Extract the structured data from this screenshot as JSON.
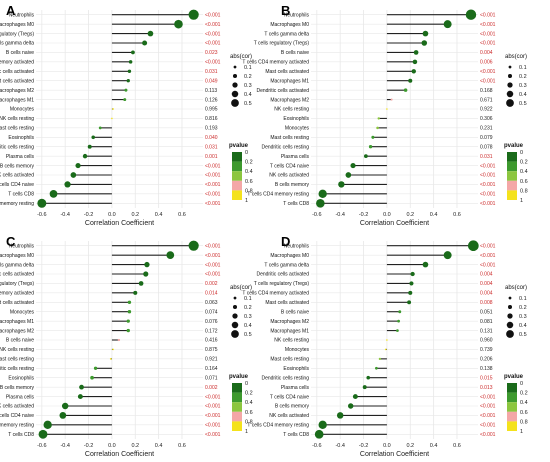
{
  "chart_data": [
    {
      "panel": "A",
      "type": "scatter",
      "xlabel": "Correlation Coefficient",
      "xticks": [
        -0.6,
        -0.4,
        -0.2,
        0.0,
        0.2,
        0.4,
        0.6
      ],
      "xlim": [
        -0.65,
        0.78
      ],
      "size_legend_title": "abs(cor)",
      "size_legend_values": [
        "0.1",
        "0.2",
        "0.3",
        "0.4",
        "0.5"
      ],
      "color_legend_title": "pvalue",
      "color_legend_values": [
        "0",
        "0.2",
        "0.4",
        "0.6",
        "0.8",
        "1"
      ],
      "cells": [
        "Neutrophils",
        "Macrophages M0",
        "T cells regulatory (Tregs)",
        "T cells gamma delta",
        "B cells naive",
        "T cells CD4 memory activated",
        "Dendritic cells activated",
        "Mast cells activated",
        "Macrophages M2",
        "Macrophages M1",
        "Monocytes",
        "NK cells resting",
        "Mast cells resting",
        "Eosinophils",
        "Dendritic cells resting",
        "Plasma cells",
        "B cells memory",
        "NK cells activated",
        "T cells CD4 naive",
        "T cells CD8",
        "T cells CD4 memory resting"
      ],
      "values": [
        0.7,
        0.57,
        0.33,
        0.28,
        0.18,
        0.16,
        0.15,
        0.14,
        0.12,
        0.11,
        0.01,
        0.0,
        -0.1,
        -0.16,
        -0.19,
        -0.23,
        -0.29,
        -0.33,
        -0.38,
        -0.5,
        -0.6
      ],
      "pvalues": [
        "<0.001",
        "<0.001",
        "<0.001",
        "<0.001",
        "0.023",
        "<0.001",
        "0.031",
        "0.049",
        "0.113",
        "0.126",
        "0.995",
        "0.816",
        "0.193",
        "0.040",
        "0.031",
        "0.001",
        "<0.001",
        "<0.001",
        "<0.001",
        "<0.001",
        "<0.001"
      ],
      "significant": [
        true,
        true,
        true,
        true,
        true,
        true,
        true,
        true,
        false,
        false,
        false,
        false,
        false,
        true,
        true,
        true,
        true,
        true,
        true,
        true,
        true
      ]
    },
    {
      "panel": "B",
      "type": "scatter",
      "xlabel": "Correlation Coefficient",
      "xticks": [
        -0.6,
        -0.4,
        -0.2,
        0.0,
        0.2,
        0.4,
        0.6
      ],
      "xlim": [
        -0.65,
        0.78
      ],
      "size_legend_title": "abs(cor)",
      "size_legend_values": [
        "0.1",
        "0.2",
        "0.3",
        "0.4",
        "0.5"
      ],
      "color_legend_title": "pvalue",
      "color_legend_values": [
        "0",
        "0.2",
        "0.4",
        "0.6",
        "0.8",
        "1"
      ],
      "cells": [
        "Neutrophils",
        "Macrophages M0",
        "T cells gamma delta",
        "T cells regulatory (Tregs)",
        "B cells naive",
        "T cells CD4 memory activated",
        "Mast cells activated",
        "Macrophages M1",
        "Dendritic cells activated",
        "Macrophages M2",
        "NK cells resting",
        "Eosinophils",
        "Monocytes",
        "Mast cells resting",
        "Dendritic cells resting",
        "Plasma cells",
        "T cells CD4 naive",
        "NK cells activated",
        "B cells memory",
        "T cells CD4 memory resting",
        "T cells CD8"
      ],
      "values": [
        0.72,
        0.52,
        0.33,
        0.32,
        0.25,
        0.24,
        0.23,
        0.2,
        0.16,
        0.04,
        0.0,
        -0.07,
        -0.08,
        -0.12,
        -0.14,
        -0.18,
        -0.29,
        -0.33,
        -0.39,
        -0.55,
        -0.57
      ],
      "pvalues": [
        "<0.001",
        "<0.001",
        "<0.001",
        "<0.001",
        "0.004",
        "0.006",
        "<0.001",
        "<0.001",
        "0.168",
        "0.671",
        "0.922",
        "0.306",
        "0.231",
        "0.079",
        "0.078",
        "0.031",
        "<0.001",
        "<0.001",
        "<0.001",
        "<0.001",
        "<0.001"
      ],
      "significant": [
        true,
        true,
        true,
        true,
        true,
        true,
        true,
        true,
        false,
        false,
        false,
        false,
        false,
        false,
        false,
        true,
        true,
        true,
        true,
        true,
        true
      ]
    },
    {
      "panel": "C",
      "type": "scatter",
      "xlabel": "Correlation Coefficient",
      "xticks": [
        -0.6,
        -0.4,
        -0.2,
        0.0,
        0.2,
        0.4,
        0.6
      ],
      "xlim": [
        -0.65,
        0.78
      ],
      "size_legend_title": "abs(cor)",
      "size_legend_values": [
        "0.1",
        "0.2",
        "0.3",
        "0.4",
        "0.5"
      ],
      "color_legend_title": "pvalue",
      "color_legend_values": [
        "0",
        "0.2",
        "0.4",
        "0.6",
        "0.8",
        "1"
      ],
      "cells": [
        "Neutrophils",
        "Macrophages M0",
        "T cells gamma delta",
        "Dendritic cells activated",
        "T cells regulatory (Tregs)",
        "T cells CD4 memory activated",
        "Mast cells activated",
        "Monocytes",
        "Macrophages M1",
        "Macrophages M2",
        "B cells naive",
        "NK cells resting",
        "Mast cells resting",
        "Dendritic cells resting",
        "Eosinophils",
        "B cells memory",
        "Plasma cells",
        "NK cells activated",
        "T cells CD4 naive",
        "T cells CD4 memory resting",
        "T cells CD8"
      ],
      "values": [
        0.7,
        0.5,
        0.3,
        0.29,
        0.25,
        0.2,
        0.15,
        0.15,
        0.14,
        0.14,
        0.06,
        0.01,
        -0.01,
        -0.14,
        -0.17,
        -0.26,
        -0.27,
        -0.4,
        -0.42,
        -0.55,
        -0.59
      ],
      "pvalues": [
        "<0.001",
        "<0.001",
        "<0.001",
        "<0.001",
        "0.002",
        "0.014",
        "0.063",
        "0.074",
        "0.076",
        "0.172",
        "0.416",
        "0.875",
        "0.921",
        "0.164",
        "0.071",
        "0.002",
        "<0.001",
        "<0.001",
        "<0.001",
        "<0.001",
        "<0.001"
      ],
      "significant": [
        true,
        true,
        true,
        true,
        true,
        true,
        false,
        false,
        false,
        false,
        false,
        false,
        false,
        false,
        false,
        true,
        true,
        true,
        true,
        true,
        true
      ]
    },
    {
      "panel": "D",
      "type": "scatter",
      "xlabel": "Correlation Coefficient",
      "xticks": [
        -0.6,
        -0.4,
        -0.2,
        0.0,
        0.2,
        0.4,
        0.6
      ],
      "xlim": [
        -0.65,
        0.78
      ],
      "size_legend_title": "abs(cor)",
      "size_legend_values": [
        "0.1",
        "0.2",
        "0.3",
        "0.4",
        "0.5"
      ],
      "color_legend_title": "pvalue",
      "color_legend_values": [
        "0",
        "0.2",
        "0.4",
        "0.6",
        "0.8",
        "1"
      ],
      "cells": [
        "Neutrophils",
        "Macrophages M0",
        "T cells gamma delta",
        "Dendritic cells activated",
        "T cells regulatory (Tregs)",
        "T cells CD4 memory activated",
        "Mast cells activated",
        "B cells naive",
        "Macrophages M2",
        "Macrophages M1",
        "NK cells resting",
        "Monocytes",
        "Mast cells resting",
        "Eosinophils",
        "Dendritic cells resting",
        "Plasma cells",
        "T cells CD4 naive",
        "B cells memory",
        "NK cells activated",
        "T cells CD4 memory resting",
        "T cells CD8"
      ],
      "values": [
        0.74,
        0.52,
        0.33,
        0.22,
        0.21,
        0.2,
        0.19,
        0.11,
        0.1,
        0.09,
        0.0,
        -0.01,
        -0.06,
        -0.09,
        -0.16,
        -0.19,
        -0.27,
        -0.31,
        -0.4,
        -0.55,
        -0.58
      ],
      "pvalues": [
        "<0.001",
        "<0.001",
        "<0.001",
        "0.004",
        "0.004",
        "0.004",
        "0.008",
        "0.051",
        "0.081",
        "0.131",
        "0.960",
        "0.739",
        "0.206",
        "0.138",
        "0.015",
        "0.013",
        "<0.001",
        "<0.001",
        "<0.001",
        "<0.001",
        "<0.001"
      ],
      "significant": [
        true,
        true,
        true,
        true,
        true,
        true,
        true,
        false,
        false,
        false,
        false,
        false,
        false,
        false,
        true,
        true,
        true,
        true,
        true,
        true,
        true
      ]
    }
  ],
  "colors": {
    "significant_pvalue": "#cc2a2a",
    "nonsignificant_pvalue": "#222222",
    "stem": "#222222",
    "grid": "#e8e8e8",
    "pvalue_scale": [
      "#1a6b1a",
      "#3d9a2e",
      "#8cc63f",
      "#f4a7a7",
      "#f4e21c"
    ]
  }
}
